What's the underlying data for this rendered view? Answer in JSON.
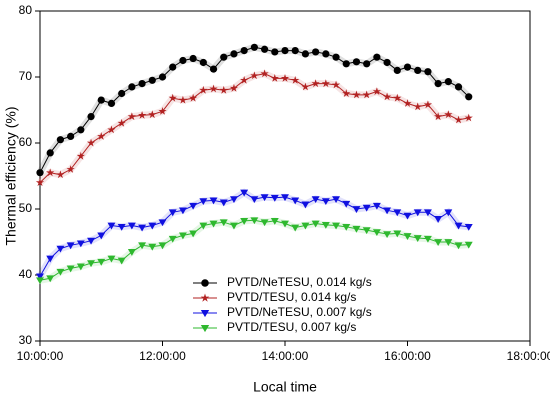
{
  "chart_data": {
    "type": "line",
    "x_label": "Local time",
    "y_label": "Thermal efficiency (%)",
    "x": [
      "10:00:00",
      "10:10:00",
      "10:20:00",
      "10:30:00",
      "10:40:00",
      "10:50:00",
      "11:00:00",
      "11:10:00",
      "11:20:00",
      "11:30:00",
      "11:40:00",
      "11:50:00",
      "12:00:00",
      "12:10:00",
      "12:20:00",
      "12:30:00",
      "12:40:00",
      "12:50:00",
      "13:00:00",
      "13:10:00",
      "13:20:00",
      "13:30:00",
      "13:40:00",
      "13:50:00",
      "14:00:00",
      "14:10:00",
      "14:20:00",
      "14:30:00",
      "14:40:00",
      "14:50:00",
      "15:00:00",
      "15:10:00",
      "15:20:00",
      "15:30:00",
      "15:40:00",
      "15:50:00",
      "16:00:00",
      "16:10:00",
      "16:20:00",
      "16:30:00",
      "16:40:00",
      "16:50:00",
      "17:00:00"
    ],
    "series": [
      {
        "name": "PVTD/NeTESU, 0.014 kg/s",
        "color": "#000000",
        "marker": "circle",
        "values": [
          55.5,
          58.5,
          60.5,
          61,
          62,
          64,
          66.5,
          66,
          67.5,
          68.5,
          69,
          69.5,
          70,
          71.5,
          72.5,
          72.8,
          72.2,
          71.2,
          73,
          73.5,
          74,
          74.5,
          74.2,
          73.8,
          74,
          74,
          73.5,
          73.8,
          73.5,
          73,
          72,
          72.3,
          72,
          73,
          72.2,
          71,
          71.5,
          71,
          70.8,
          69,
          69.3,
          68.5,
          67
        ]
      },
      {
        "name": "PVTD/TESU, 0.014 kg/s",
        "color": "#b22222",
        "marker": "star",
        "values": [
          54,
          55.5,
          55.2,
          56,
          58,
          60,
          61,
          62,
          63,
          64,
          64.2,
          64.3,
          64.8,
          66.8,
          66.5,
          66.8,
          68,
          68.2,
          68,
          68.3,
          69.5,
          70.2,
          70.5,
          69.8,
          69.8,
          69.5,
          68.5,
          69,
          69,
          68.8,
          67.5,
          67.3,
          67.3,
          67.8,
          67,
          66.8,
          66,
          65.5,
          65.8,
          64,
          64.3,
          63.5,
          63.8
        ]
      },
      {
        "name": "PVTD/NeTESU, 0.007 kg/s",
        "color": "#1010e0",
        "marker": "triangle-down",
        "values": [
          39.8,
          42.5,
          44,
          44.5,
          44.8,
          45.2,
          46,
          47.5,
          47.3,
          47.5,
          47.2,
          47.5,
          48,
          49.5,
          49.8,
          50.5,
          51.2,
          51.3,
          51,
          51.5,
          52.5,
          51.5,
          51.8,
          51.7,
          51.8,
          51.3,
          50.7,
          51.5,
          51.2,
          51.5,
          50.8,
          50,
          50.2,
          50.5,
          49.8,
          49.5,
          49,
          49.5,
          49.5,
          48.5,
          49.5,
          47.5,
          47.3
        ]
      },
      {
        "name": "PVTD/TESU, 0.007 kg/s",
        "color": "#2eb82e",
        "marker": "triangle-down",
        "values": [
          39.2,
          39.5,
          40.5,
          41,
          41.3,
          41.8,
          42,
          42.5,
          42.2,
          43.5,
          44.5,
          44.3,
          44.5,
          45.5,
          46,
          46.3,
          47.5,
          47.8,
          48,
          47.5,
          48.2,
          48.3,
          48,
          48.2,
          47.8,
          47.2,
          47.5,
          47.8,
          47.6,
          47.5,
          47.3,
          47,
          46.8,
          46.5,
          46.2,
          46.3,
          45.9,
          45.6,
          45.5,
          45,
          45,
          44.5,
          44.6
        ]
      }
    ],
    "xlim": [
      "10:00:00",
      "18:00:00"
    ],
    "xticks": [
      "10:00:00",
      "12:00:00",
      "14:00:00",
      "16:00:00",
      "18:00:00"
    ],
    "ylim": [
      30,
      80
    ],
    "yticks": [
      30,
      40,
      50,
      60,
      70,
      80
    ],
    "grid": false
  }
}
